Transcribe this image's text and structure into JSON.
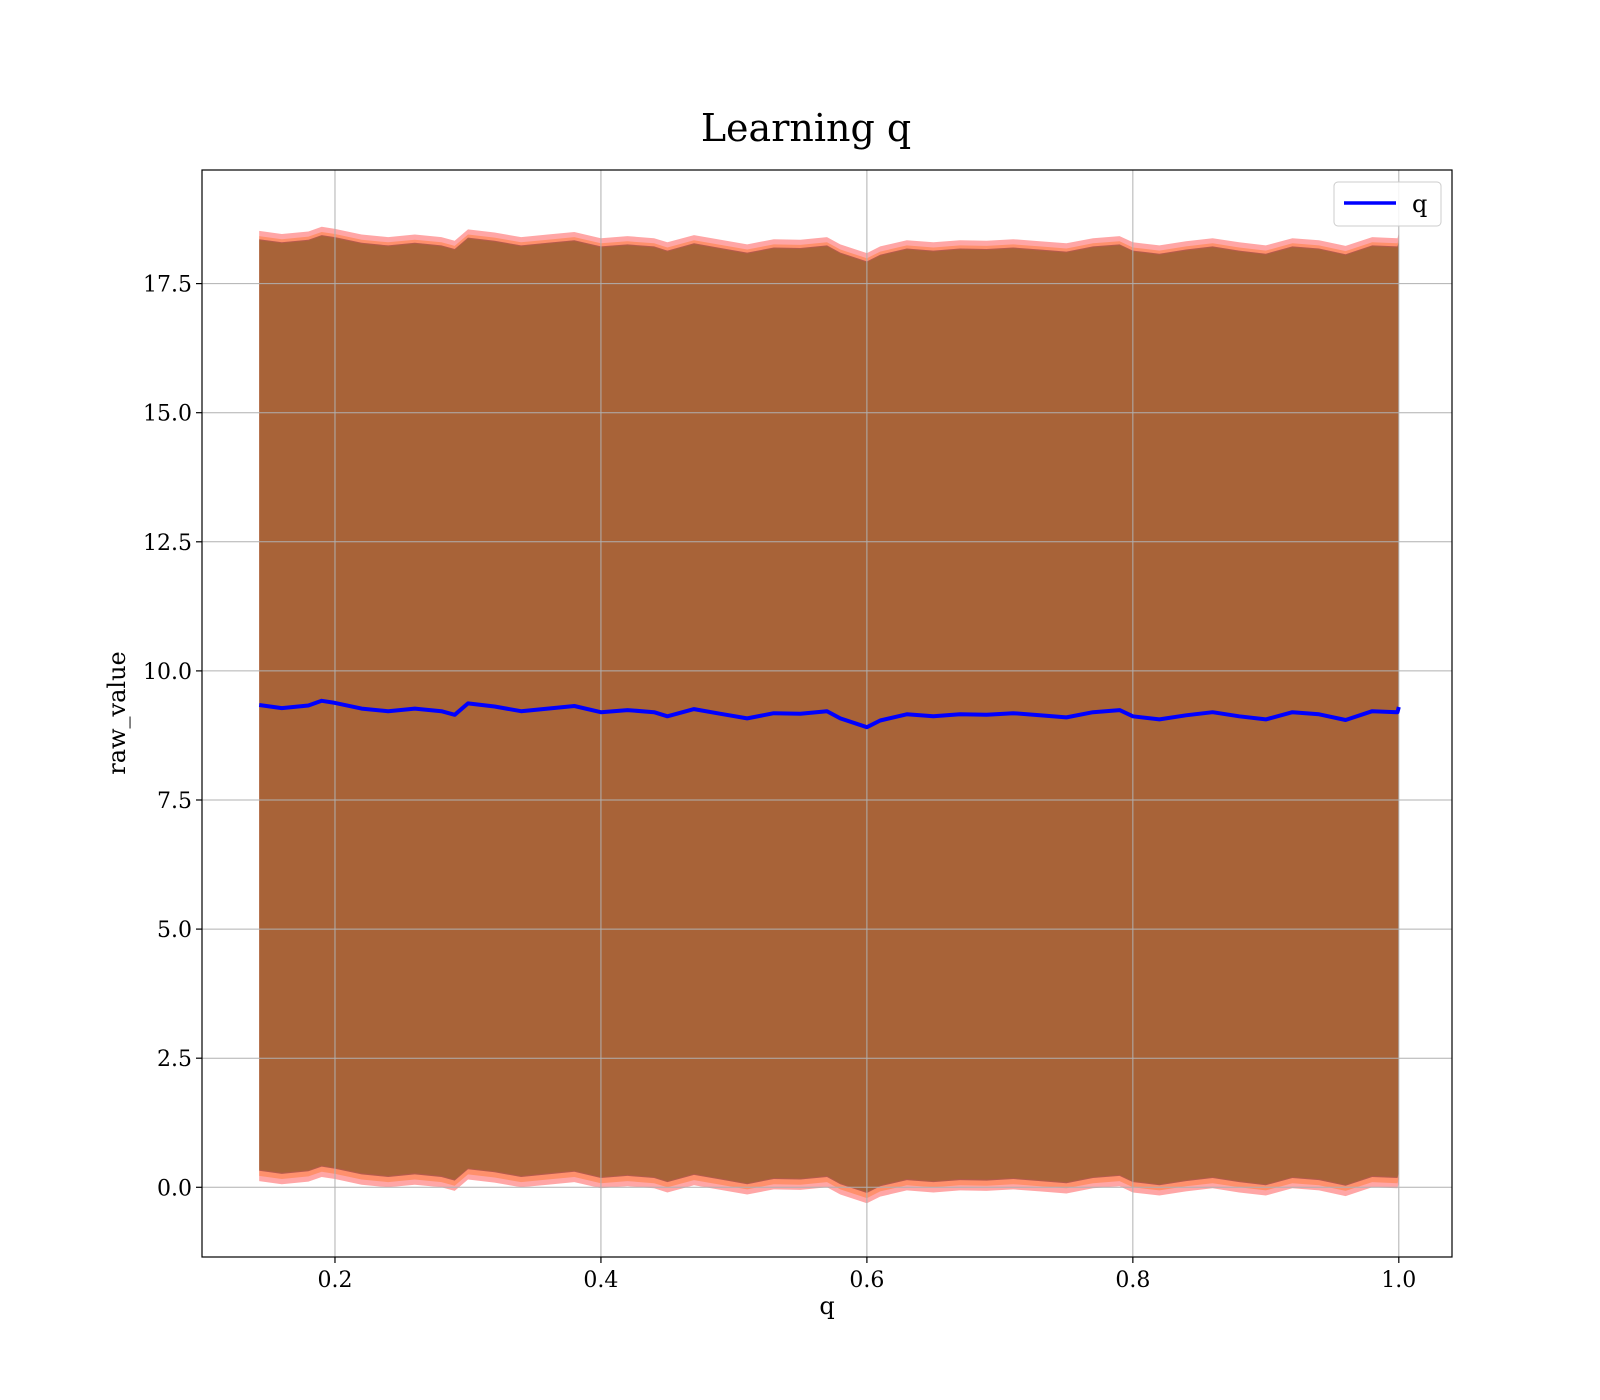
{
  "chart_data": {
    "type": "line",
    "title": "Learning q",
    "xlabel": "q",
    "ylabel": "raw_value",
    "xlim": [
      0.1,
      1.04
    ],
    "ylim": [
      -1.35,
      19.7
    ],
    "xticks": [
      0.2,
      0.4,
      0.6,
      0.8,
      1.0
    ],
    "xtick_labels": [
      "0.2",
      "0.4",
      "0.6",
      "0.8",
      "1.0"
    ],
    "yticks": [
      0.0,
      2.5,
      5.0,
      7.5,
      10.0,
      12.5,
      15.0,
      17.5
    ],
    "ytick_labels": [
      "0.0",
      "2.5",
      "5.0",
      "7.5",
      "10.0",
      "12.5",
      "15.0",
      "17.5"
    ],
    "grid": true,
    "legend_position": "top-right",
    "series": [
      {
        "name": "q",
        "color": "#0000ff",
        "x": [
          0.143,
          0.16,
          0.18,
          0.19,
          0.2,
          0.22,
          0.24,
          0.26,
          0.28,
          0.29,
          0.3,
          0.32,
          0.34,
          0.36,
          0.38,
          0.4,
          0.42,
          0.44,
          0.45,
          0.47,
          0.49,
          0.51,
          0.53,
          0.55,
          0.57,
          0.58,
          0.6,
          0.61,
          0.63,
          0.65,
          0.67,
          0.69,
          0.71,
          0.73,
          0.75,
          0.77,
          0.79,
          0.8,
          0.82,
          0.84,
          0.86,
          0.88,
          0.9,
          0.92,
          0.94,
          0.96,
          0.98,
          0.999,
          1.0
        ],
        "y": [
          9.34,
          9.28,
          9.33,
          9.42,
          9.38,
          9.27,
          9.22,
          9.27,
          9.22,
          9.15,
          9.37,
          9.31,
          9.22,
          9.27,
          9.32,
          9.2,
          9.24,
          9.2,
          9.12,
          9.26,
          9.17,
          9.08,
          9.18,
          9.17,
          9.22,
          9.08,
          8.91,
          9.04,
          9.16,
          9.12,
          9.16,
          9.15,
          9.18,
          9.14,
          9.1,
          9.2,
          9.24,
          9.12,
          9.06,
          9.14,
          9.2,
          9.12,
          9.06,
          9.2,
          9.16,
          9.05,
          9.22,
          9.2,
          9.3
        ]
      }
    ],
    "bands": [
      {
        "color": "#ff0000",
        "opacity": 0.35,
        "upper_offset": 9.18,
        "lower_offset": -9.22
      },
      {
        "color": "#ff6600",
        "opacity": 0.35,
        "upper_offset": 9.08,
        "lower_offset": -9.12
      },
      {
        "color": "#808080",
        "opacity": 0.35,
        "upper_offset": 9.02,
        "lower_offset": -9.02
      },
      {
        "color": "#800000",
        "opacity": 0.35,
        "upper_offset": 9.02,
        "lower_offset": -9.02
      },
      {
        "color": "#808000",
        "opacity": 0.25,
        "upper_offset": 9.0,
        "lower_offset": -9.0
      }
    ]
  }
}
